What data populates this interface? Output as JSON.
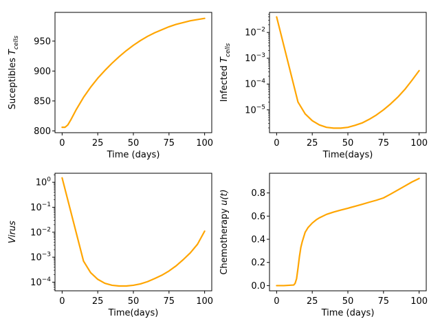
{
  "chart_data": [
    {
      "type": "line",
      "panel": "top-left",
      "xlabel": "Time (days)",
      "ylabel_parts": {
        "main": "Suceptibles ",
        "italic": "T",
        "sub": "cells"
      },
      "yscale": "linear",
      "xlim": [
        -5,
        105
      ],
      "ylim": [
        797,
        998
      ],
      "xticks": [
        0,
        25,
        50,
        75,
        100
      ],
      "yticks": [
        800,
        850,
        900,
        950
      ],
      "yticklabels": [
        "800",
        "850",
        "900",
        "950"
      ],
      "color": "#ffa500",
      "x": [
        0,
        2,
        4,
        6,
        8,
        10,
        15,
        20,
        25,
        30,
        35,
        40,
        45,
        50,
        55,
        60,
        65,
        70,
        75,
        80,
        85,
        90,
        95,
        100
      ],
      "y": [
        806,
        806,
        810,
        818,
        827,
        836,
        856,
        873,
        888,
        901,
        913,
        924,
        934,
        943,
        951,
        958,
        964,
        969,
        974,
        978,
        981,
        984,
        986,
        988
      ]
    },
    {
      "type": "line",
      "panel": "top-right",
      "xlabel": "Time(days)",
      "ylabel_parts": {
        "main": "Infected ",
        "italic": "T",
        "sub": "cells"
      },
      "yscale": "log",
      "xlim": [
        -5,
        105
      ],
      "ylim": [
        1.3e-06,
        0.06
      ],
      "xticks": [
        0,
        25,
        50,
        75,
        100
      ],
      "yticks": [
        1e-05,
        0.0001,
        0.001,
        0.01
      ],
      "yticklabels": [
        {
          "base": "10",
          "exp": "−5"
        },
        {
          "base": "10",
          "exp": "−4"
        },
        {
          "base": "10",
          "exp": "−3"
        },
        {
          "base": "10",
          "exp": "−2"
        }
      ],
      "color": "#ffa500",
      "x": [
        0,
        15,
        20,
        25,
        30,
        35,
        40,
        45,
        50,
        55,
        60,
        65,
        70,
        75,
        80,
        85,
        90,
        95,
        100
      ],
      "y": [
        0.04,
        2e-05,
        7e-06,
        3.8e-06,
        2.6e-06,
        2.1e-06,
        1.95e-06,
        1.95e-06,
        2.1e-06,
        2.5e-06,
        3.1e-06,
        4.3e-06,
        6.3e-06,
        1e-05,
        1.7e-05,
        3.1e-05,
        6.2e-05,
        0.00014,
        0.00033
      ]
    },
    {
      "type": "line",
      "panel": "bottom-left",
      "xlabel": "Time(days)",
      "ylabel_parts": {
        "main": "",
        "italic": "Virus",
        "sub": ""
      },
      "yscale": "log",
      "xlim": [
        -5,
        105
      ],
      "ylim": [
        4.5e-05,
        2.3
      ],
      "xticks": [
        0,
        25,
        50,
        75,
        100
      ],
      "yticks": [
        0.0001,
        0.001,
        0.01,
        0.1,
        1
      ],
      "yticklabels": [
        {
          "base": "10",
          "exp": "−4"
        },
        {
          "base": "10",
          "exp": "−3"
        },
        {
          "base": "10",
          "exp": "−2"
        },
        {
          "base": "10",
          "exp": "−1"
        },
        {
          "base": "10",
          "exp": "0"
        }
      ],
      "color": "#ffa500",
      "x": [
        0,
        15,
        20,
        25,
        30,
        35,
        40,
        45,
        50,
        55,
        60,
        65,
        70,
        75,
        80,
        85,
        90,
        95,
        100
      ],
      "y": [
        1.5,
        0.0007,
        0.00024,
        0.00013,
        9e-05,
        7.5e-05,
        7e-05,
        7e-05,
        7.5e-05,
        8.5e-05,
        0.000105,
        0.00014,
        0.00019,
        0.00028,
        0.00045,
        0.0008,
        0.0015,
        0.0033,
        0.011
      ]
    },
    {
      "type": "line",
      "panel": "bottom-right",
      "xlabel": "Time (days)",
      "ylabel_parts": {
        "main": "Chemotherapy  ",
        "italic": "u(t)",
        "sub": ""
      },
      "yscale": "linear",
      "xlim": [
        -5,
        105
      ],
      "ylim": [
        -0.045,
        0.97
      ],
      "xticks": [
        0,
        25,
        50,
        75,
        100
      ],
      "yticks": [
        0.0,
        0.2,
        0.4,
        0.6,
        0.8
      ],
      "yticklabels": [
        "0.0",
        "0.2",
        "0.4",
        "0.6",
        "0.8"
      ],
      "color": "#ffa500",
      "x": [
        0,
        5,
        12,
        13,
        14,
        15,
        16,
        17,
        18,
        19,
        20,
        22,
        25,
        28,
        30,
        35,
        40,
        45,
        50,
        55,
        60,
        65,
        70,
        75,
        80,
        85,
        90,
        95,
        100
      ],
      "y": [
        0.0,
        0.0,
        0.005,
        0.02,
        0.06,
        0.15,
        0.25,
        0.33,
        0.38,
        0.42,
        0.46,
        0.5,
        0.54,
        0.57,
        0.585,
        0.615,
        0.635,
        0.652,
        0.668,
        0.685,
        0.702,
        0.72,
        0.737,
        0.757,
        0.79,
        0.825,
        0.86,
        0.895,
        0.925
      ]
    }
  ]
}
